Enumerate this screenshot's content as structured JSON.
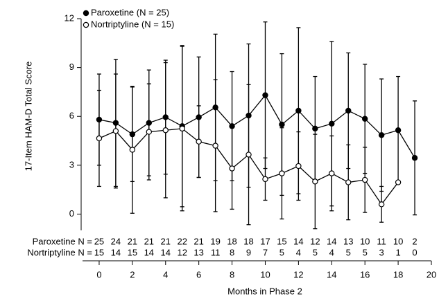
{
  "chart_data": {
    "type": "errorbar-line",
    "y_label": "17-Item HAM-D Total Score",
    "x_label": "Months in Phase 2",
    "xlim": [
      -1,
      20
    ],
    "xticks": [
      0,
      2,
      4,
      6,
      8,
      10,
      12,
      14,
      16,
      18,
      20
    ],
    "ylim": [
      -1,
      12
    ],
    "yticks": [
      0,
      3,
      6,
      9,
      12
    ],
    "legend_position": "upper left",
    "x": [
      0,
      1,
      2,
      3,
      4,
      5,
      6,
      7,
      8,
      9,
      10,
      11,
      12,
      13,
      14,
      15,
      16,
      17,
      18,
      19
    ],
    "series": [
      {
        "name": "Paroxetine (N = 25)",
        "color": "#000000",
        "marker": "filled",
        "values": [
          5.8,
          5.6,
          4.9,
          5.6,
          5.95,
          5.4,
          5.95,
          6.55,
          5.4,
          6.05,
          7.3,
          5.5,
          6.35,
          5.25,
          5.55,
          6.35,
          5.85,
          4.85,
          5.15,
          3.45
        ],
        "errors": [
          2.8,
          3.9,
          2.9,
          3.25,
          3.5,
          4.95,
          3.7,
          4.5,
          3.35,
          4.4,
          4.5,
          4.35,
          5.1,
          3.2,
          5.05,
          3.55,
          3.35,
          3.45,
          3.3,
          3.5
        ]
      },
      {
        "name": "Nortriptyline (N = 15)",
        "color": "#000000",
        "marker": "open",
        "values": [
          4.65,
          5.1,
          3.95,
          5.05,
          5.15,
          5.25,
          4.45,
          4.2,
          2.8,
          3.65,
          2.15,
          2.5,
          2.95,
          2.0,
          2.5,
          1.95,
          2.1,
          0.6,
          1.95,
          null
        ],
        "errors": [
          2.95,
          3.5,
          3.9,
          2.95,
          4.15,
          5.05,
          2.2,
          4.05,
          2.5,
          4.3,
          1.3,
          2.8,
          2.1,
          2.9,
          2.3,
          2.3,
          2.0,
          1.1,
          null,
          null
        ]
      }
    ],
    "n_rows": [
      {
        "label": "Paroxetine N =",
        "values": [
          25,
          24,
          21,
          21,
          21,
          22,
          21,
          19,
          18,
          18,
          17,
          15,
          14,
          12,
          14,
          13,
          10,
          11,
          10,
          2
        ]
      },
      {
        "label": "Nortriptyline N =",
        "values": [
          15,
          14,
          15,
          14,
          14,
          12,
          13,
          11,
          8,
          9,
          7,
          5,
          4,
          5,
          4,
          5,
          5,
          3,
          1,
          0
        ]
      }
    ]
  }
}
